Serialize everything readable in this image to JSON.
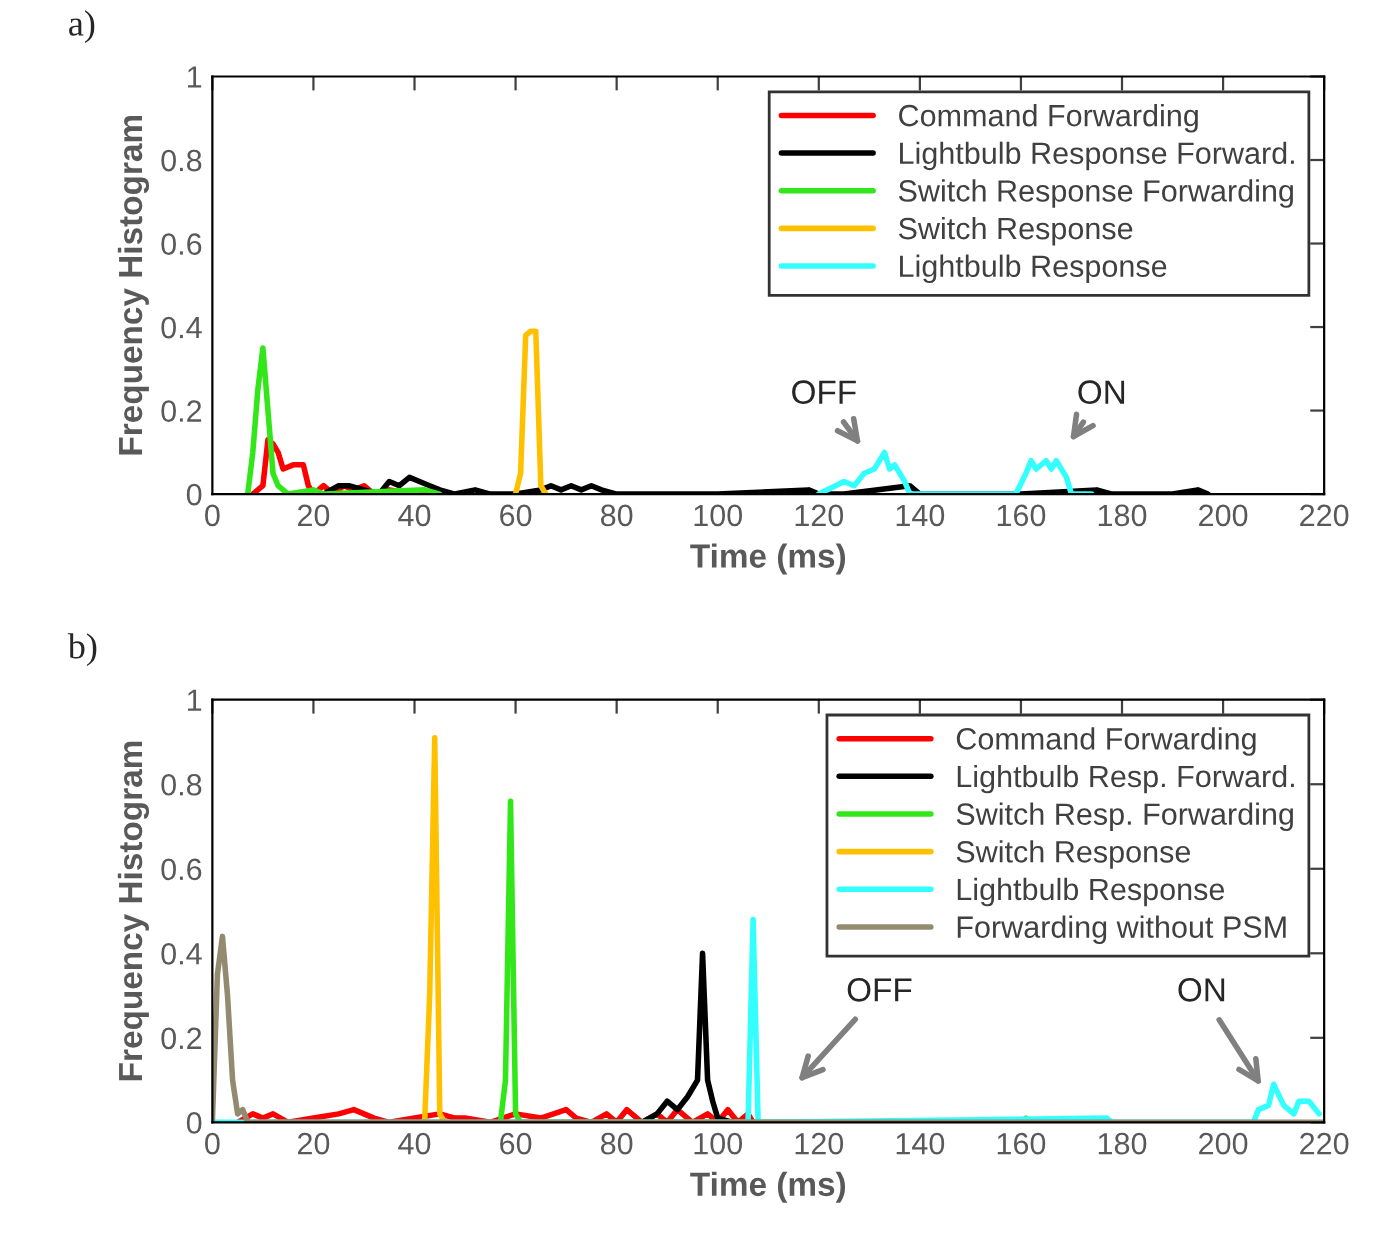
{
  "chart_data": [
    {
      "type": "line",
      "xlabel": "Time (ms)",
      "ylabel": "Frequency Histogram",
      "xlim": [
        0,
        220
      ],
      "ylim": [
        0,
        1
      ],
      "xticks": [
        0,
        20,
        40,
        60,
        80,
        100,
        120,
        140,
        160,
        180,
        200,
        220
      ],
      "yticks": [
        0,
        0.2,
        0.4,
        0.6,
        0.8,
        1
      ],
      "legend": "top right",
      "grid": false,
      "marker": "none",
      "annotations": [
        "a)",
        "OFF",
        "ON"
      ],
      "series": [
        {
          "name": "Command Forwarding",
          "color": "#ff0000",
          "x": [
            8,
            10,
            11,
            12,
            13,
            14,
            16,
            18,
            19,
            20,
            22,
            24,
            26,
            28,
            30,
            32,
            35,
            40,
            45
          ],
          "values": [
            0,
            0.02,
            0.13,
            0.12,
            0.1,
            0.06,
            0.07,
            0.07,
            0.02,
            0,
            0.02,
            0,
            0.02,
            0.01,
            0.02,
            0,
            0.01,
            0,
            0
          ]
        },
        {
          "name": "Lightbulb Response Forward.",
          "color": "#000000",
          "x": [
            22,
            25,
            27,
            30,
            33,
            35,
            37,
            39,
            41,
            43,
            45,
            48,
            52,
            55,
            60,
            65,
            67,
            69,
            71,
            73,
            75,
            77,
            80,
            100,
            118,
            120,
            125,
            138,
            140,
            160,
            175,
            178,
            190,
            195,
            197
          ],
          "values": [
            0,
            0.02,
            0.02,
            0.01,
            0,
            0.03,
            0.02,
            0.04,
            0.03,
            0.02,
            0.01,
            0,
            0.01,
            0,
            0,
            0.01,
            0.02,
            0.01,
            0.02,
            0.01,
            0.02,
            0.01,
            0,
            0,
            0.01,
            0,
            0,
            0.02,
            0,
            0,
            0.01,
            0,
            0,
            0.01,
            0
          ]
        },
        {
          "name": "Switch Response Forwarding",
          "color": "#33e61a",
          "x": [
            7,
            8,
            9,
            10,
            11,
            12,
            13,
            15,
            20,
            22,
            42,
            45
          ],
          "values": [
            0,
            0.1,
            0.25,
            0.35,
            0.2,
            0.05,
            0.02,
            0,
            0.01,
            0,
            0.01,
            0
          ]
        },
        {
          "name": "Switch Response",
          "color": "#ffc000",
          "x": [
            60,
            61,
            62,
            63,
            64,
            65,
            66
          ],
          "values": [
            0,
            0.05,
            0.38,
            0.39,
            0.39,
            0.02,
            0
          ]
        },
        {
          "name": "Lightbulb Response",
          "color": "#33ffff",
          "x": [
            120,
            125,
            127,
            129,
            131,
            133,
            134,
            135,
            137,
            138,
            150,
            159,
            161,
            162,
            163,
            165,
            166,
            167,
            169,
            170,
            174
          ],
          "values": [
            0,
            0.03,
            0.02,
            0.05,
            0.06,
            0.1,
            0.06,
            0.07,
            0.03,
            0,
            0,
            0,
            0.05,
            0.08,
            0.06,
            0.08,
            0.06,
            0.08,
            0.04,
            0,
            0
          ]
        }
      ]
    },
    {
      "type": "line",
      "xlabel": "Time (ms)",
      "ylabel": "Frequency Histogram",
      "xlim": [
        0,
        220
      ],
      "ylim": [
        0,
        1
      ],
      "xticks": [
        0,
        20,
        40,
        60,
        80,
        100,
        120,
        140,
        160,
        180,
        200,
        220
      ],
      "yticks": [
        0,
        0.2,
        0.4,
        0.6,
        0.8,
        1
      ],
      "legend": "top right",
      "grid": false,
      "marker": "none",
      "annotations": [
        "b)",
        "OFF",
        "ON"
      ],
      "series": [
        {
          "name": "Command Forwarding",
          "color": "#ff0000",
          "x": [
            5,
            8,
            10,
            12,
            15,
            20,
            25,
            28,
            30,
            32,
            35,
            40,
            45,
            48,
            50,
            55,
            60,
            65,
            70,
            72,
            75,
            78,
            80,
            82,
            85,
            88,
            90,
            92,
            95,
            98,
            100,
            102,
            104,
            106,
            107
          ],
          "values": [
            0,
            0.02,
            0.01,
            0.02,
            0,
            0.01,
            0.02,
            0.03,
            0.02,
            0.01,
            0,
            0.01,
            0.02,
            0.01,
            0.01,
            0,
            0.02,
            0.01,
            0.03,
            0.01,
            0,
            0.02,
            0,
            0.03,
            0,
            0.02,
            0,
            0.03,
            0,
            0.02,
            0,
            0.03,
            0,
            0.02,
            0
          ]
        },
        {
          "name": "Lightbulb Resp. Forward.",
          "color": "#000000",
          "x": [
            85,
            88,
            90,
            92,
            94,
            96,
            97,
            98,
            99,
            100,
            103
          ],
          "values": [
            0,
            0.02,
            0.05,
            0.03,
            0.06,
            0.1,
            0.4,
            0.1,
            0.05,
            0.01,
            0
          ]
        },
        {
          "name": "Switch Resp. Forwarding",
          "color": "#33e61a",
          "x": [
            57,
            58,
            59,
            60,
            61,
            160,
            161,
            162
          ],
          "values": [
            0,
            0.1,
            0.76,
            0.02,
            0,
            0,
            0.01,
            0
          ]
        },
        {
          "name": "Switch Response",
          "color": "#ffc000",
          "x": [
            42,
            43,
            44,
            45,
            46
          ],
          "values": [
            0,
            0.3,
            0.91,
            0.02,
            0
          ]
        },
        {
          "name": "Lightbulb Response",
          "color": "#33ffff",
          "x": [
            0,
            8,
            106,
            107,
            108,
            177,
            178,
            206,
            207,
            209,
            210,
            212,
            214,
            215,
            217,
            219
          ],
          "values": [
            0,
            0,
            0,
            0.48,
            0,
            0.01,
            0,
            0,
            0.03,
            0.04,
            0.09,
            0.04,
            0.02,
            0.05,
            0.05,
            0.02
          ]
        },
        {
          "name": "Forwarding without PSM",
          "color": "#948a70",
          "x": [
            0,
            1,
            2,
            3,
            4,
            5,
            6,
            7,
            220
          ],
          "values": [
            0,
            0.35,
            0.44,
            0.3,
            0.1,
            0.02,
            0.03,
            0,
            0
          ]
        }
      ]
    }
  ]
}
